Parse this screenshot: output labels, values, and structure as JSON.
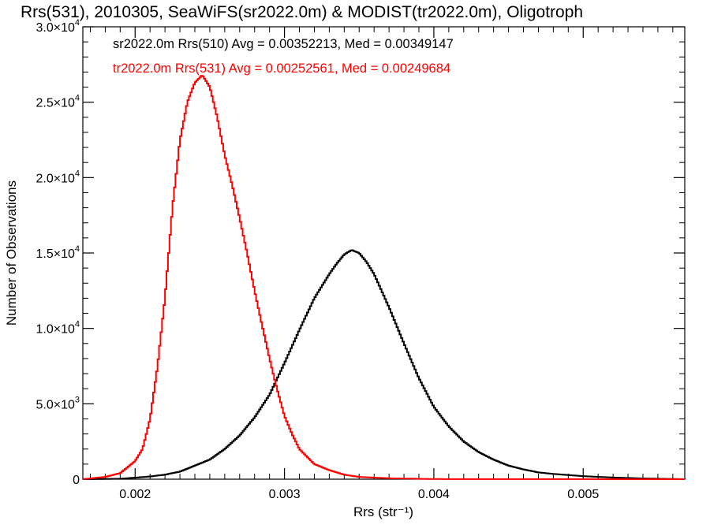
{
  "chart_data": {
    "type": "line",
    "title": "Rrs(531), 2010305, SeaWiFS(sr2022.0m) & MODIST(tr2022.0m), Oligotroph",
    "xlabel": "Rrs (str⁻¹)",
    "ylabel": "Number of Observations",
    "xlim": [
      0.00165,
      0.00568
    ],
    "ylim": [
      0,
      30000
    ],
    "x_ticks": [
      {
        "value": 0.002,
        "label": "0.002"
      },
      {
        "value": 0.003,
        "label": "0.003"
      },
      {
        "value": 0.004,
        "label": "0.004"
      },
      {
        "value": 0.005,
        "label": "0.005"
      }
    ],
    "y_ticks": [
      {
        "value": 0,
        "mant": "0",
        "exp": ""
      },
      {
        "value": 5000,
        "mant": "5.0×10",
        "exp": "3"
      },
      {
        "value": 10000,
        "mant": "1.0×10",
        "exp": "4"
      },
      {
        "value": 15000,
        "mant": "1.5×10",
        "exp": "4"
      },
      {
        "value": 20000,
        "mant": "2.0×10",
        "exp": "4"
      },
      {
        "value": 25000,
        "mant": "2.5×10",
        "exp": "4"
      },
      {
        "value": 30000,
        "mant": "3.0×10",
        "exp": "4"
      }
    ],
    "legend": [
      {
        "text": "sr2022.0m Rrs(510) Avg = 0.00352213, Med = 0.00349147",
        "color": "#000000"
      },
      {
        "text": "tr2022.0m Rrs(531) Avg = 0.00252561, Med = 0.00249684",
        "color": "#ff0000"
      }
    ],
    "series": [
      {
        "color": "#000000",
        "x": [
          0.00165,
          0.0019,
          0.002,
          0.0021,
          0.0022,
          0.0023,
          0.0024,
          0.0025,
          0.0026,
          0.0027,
          0.0028,
          0.0029,
          0.003,
          0.0031,
          0.0032,
          0.0033,
          0.00335,
          0.0034,
          0.00345,
          0.0035,
          0.00355,
          0.0036,
          0.00365,
          0.0037,
          0.0038,
          0.0039,
          0.004,
          0.0041,
          0.0042,
          0.0043,
          0.0044,
          0.0045,
          0.0046,
          0.0047,
          0.0048,
          0.005,
          0.0052,
          0.0054,
          0.00568
        ],
        "y": [
          0,
          30,
          100,
          180,
          300,
          500,
          900,
          1300,
          2000,
          2900,
          4100,
          5600,
          7700,
          9900,
          12000,
          13600,
          14300,
          14900,
          15200,
          15000,
          14400,
          13600,
          12500,
          11400,
          9000,
          6700,
          4800,
          3500,
          2500,
          1800,
          1300,
          900,
          650,
          450,
          350,
          200,
          110,
          50,
          0
        ]
      },
      {
        "color": "#ff0000",
        "x": [
          0.00165,
          0.0018,
          0.0019,
          0.002,
          0.00205,
          0.0021,
          0.00215,
          0.0022,
          0.00225,
          0.0023,
          0.00235,
          0.0024,
          0.00245,
          0.0025,
          0.00255,
          0.0026,
          0.00265,
          0.0027,
          0.00275,
          0.0028,
          0.00285,
          0.0029,
          0.00295,
          0.003,
          0.00305,
          0.0031,
          0.0032,
          0.0033,
          0.0034,
          0.0035,
          0.0037,
          0.004,
          0.00568
        ],
        "y": [
          0,
          150,
          400,
          1200,
          2000,
          4000,
          7500,
          12000,
          18000,
          22500,
          25000,
          26300,
          26800,
          26000,
          24000,
          21500,
          19500,
          17300,
          15000,
          12500,
          10200,
          8000,
          6000,
          4200,
          3000,
          2000,
          1000,
          600,
          300,
          150,
          60,
          10,
          0
        ]
      }
    ]
  }
}
